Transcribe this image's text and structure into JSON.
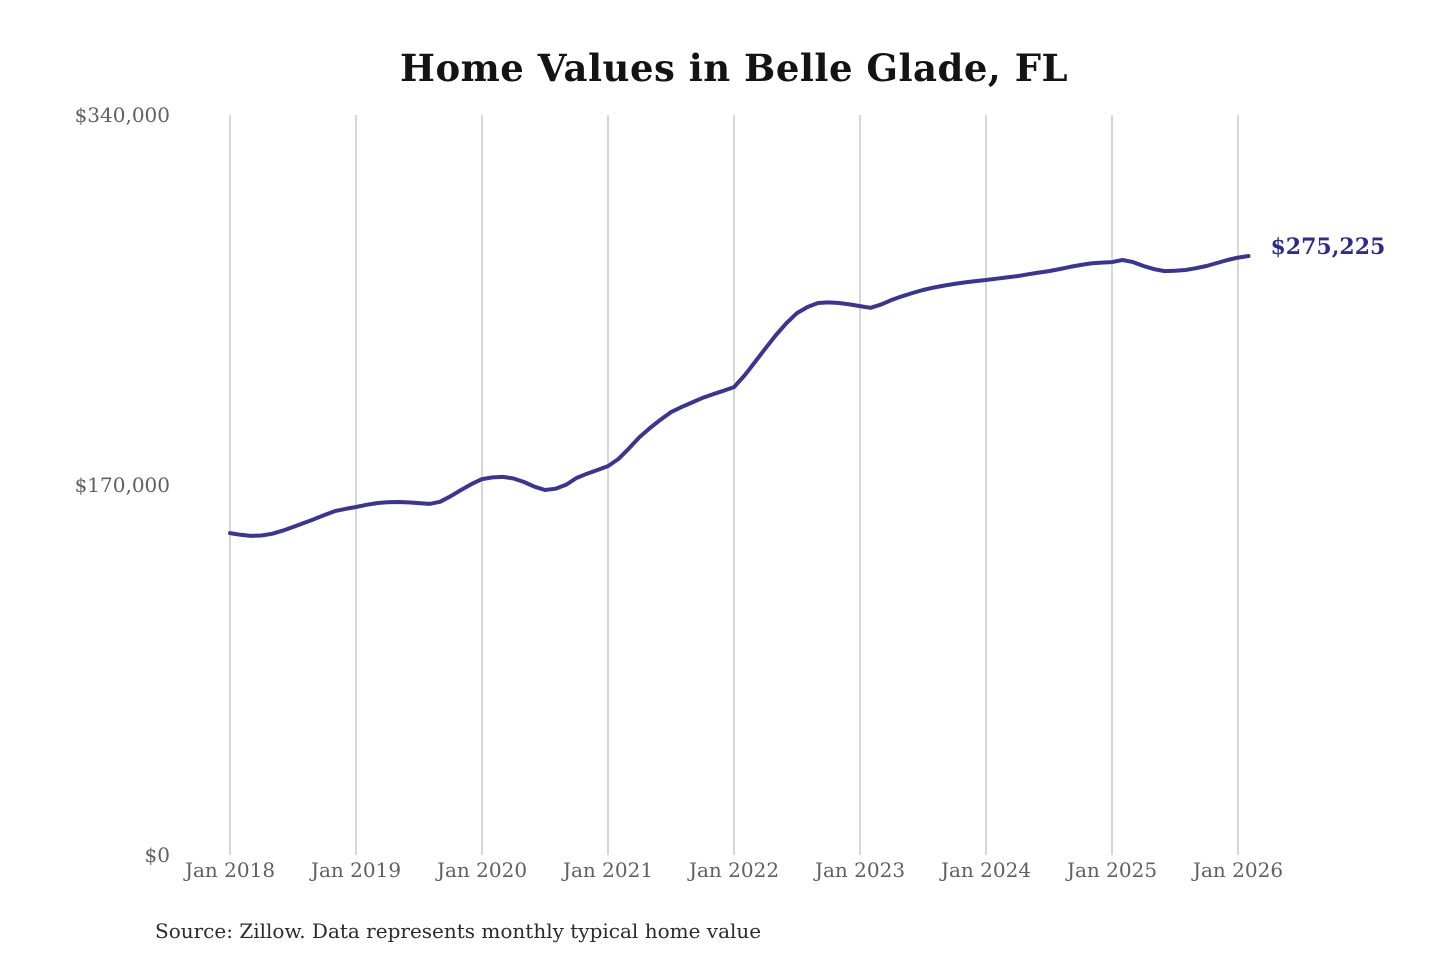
{
  "title": "Home Values in Belle Glade, FL",
  "source": "Source: Zillow. Data represents monthly typical home value",
  "annotation": {
    "end_label": "$275,225"
  },
  "colors": {
    "line": "#3a3492",
    "annotation_text": "#2e2b8d",
    "gridline": "#cccccc",
    "axis_text": "#606060",
    "title_text": "#141414",
    "source_text": "#2b2b2b",
    "background": "#ffffff"
  },
  "chart_data": {
    "type": "line",
    "title": "Home Values in Belle Glade, FL",
    "series_name": "Monthly typical home value",
    "x_start": "2018-01",
    "x_end": "2026-02",
    "x_interval": "monthly",
    "values": [
      147900,
      147100,
      146600,
      146800,
      147600,
      149000,
      150700,
      152500,
      154300,
      156200,
      158000,
      159000,
      159900,
      160900,
      161700,
      162100,
      162200,
      162000,
      161700,
      161300,
      162300,
      164800,
      167700,
      170400,
      172700,
      173500,
      173700,
      173000,
      171400,
      169200,
      167700,
      168300,
      170100,
      173200,
      175200,
      176900,
      178700,
      182000,
      186800,
      192000,
      196200,
      200000,
      203500,
      205800,
      207900,
      210000,
      211700,
      213300,
      215000,
      220300,
      226500,
      232800,
      238900,
      244400,
      249000,
      251800,
      253600,
      253900,
      253600,
      253000,
      252200,
      251400,
      252900,
      255000,
      256700,
      258200,
      259600,
      260700,
      261600,
      262400,
      263100,
      263700,
      264200,
      264800,
      265400,
      266000,
      266800,
      267600,
      268300,
      269200,
      270200,
      271100,
      271800,
      272200,
      272400,
      273400,
      272400,
      270600,
      269200,
      268300,
      268400,
      268800,
      269600,
      270600,
      272000,
      273400,
      274500,
      275225
    ],
    "final_value": 275225,
    "end_label": "$275,225",
    "ylim": [
      0,
      340000
    ],
    "y_ticks": [
      {
        "value": 0,
        "label": "$0"
      },
      {
        "value": 170000,
        "label": "$170,000"
      },
      {
        "value": 340000,
        "label": "$340,000"
      }
    ],
    "x_tick_labels": [
      "Jan 2018",
      "Jan 2019",
      "Jan 2020",
      "Jan 2021",
      "Jan 2022",
      "Jan 2023",
      "Jan 2024",
      "Jan 2025",
      "Jan 2026"
    ],
    "grid": "vertical-only",
    "legend": "none",
    "source": "Source: Zillow. Data represents monthly typical home value"
  }
}
